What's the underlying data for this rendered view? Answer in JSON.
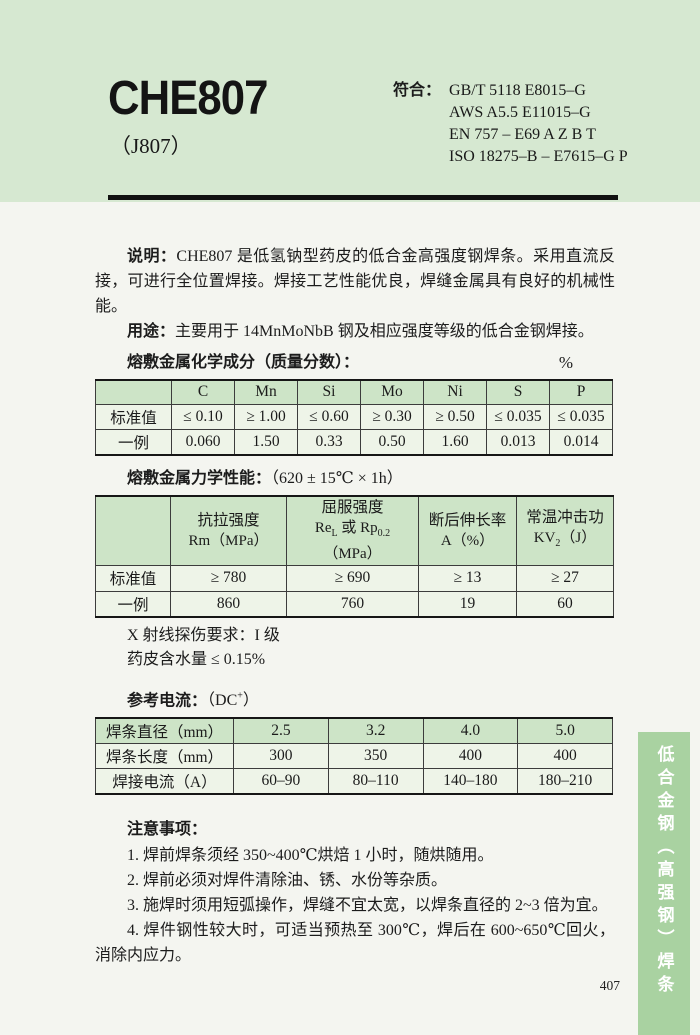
{
  "colors": {
    "band": "#d6e8d1",
    "tab": "#a9d2a1",
    "thead": "#cde4c7",
    "rowbg": "#eef4e8",
    "page": "#f4f5f0"
  },
  "header": {
    "model": "CHE807",
    "alias": "（J807）",
    "standards_label": "符合：",
    "standards": [
      "GB/T 5118 E8015–G",
      "AWS A5.5 E11015–G",
      "EN 757 – E69 A Z B T",
      "ISO 18275–B – E7615–G P"
    ]
  },
  "description": {
    "label": "说明：",
    "text": "CHE807 是低氢钠型药皮的低合金高强度钢焊条。采用直流反接，可进行全位置焊接。焊接工艺性能优良，焊缝金属具有良好的机械性能。"
  },
  "usage": {
    "label": "用途：",
    "text": "主要用于 14MnMoNbB 钢及相应强度等级的低合金钢焊接。"
  },
  "chemical": {
    "title": "熔敷金属化学成分（质量分数）：",
    "unit": "%",
    "columns": [
      "",
      "C",
      "Mn",
      "Si",
      "Mo",
      "Ni",
      "S",
      "P"
    ],
    "rows": [
      [
        "标准值",
        "≤ 0.10",
        "≥ 1.00",
        "≤ 0.60",
        "≥ 0.30",
        "≥ 0.50",
        "≤ 0.035",
        "≤ 0.035"
      ],
      [
        "一例",
        "0.060",
        "1.50",
        "0.33",
        "0.50",
        "1.60",
        "0.013",
        "0.014"
      ]
    ]
  },
  "mechanical": {
    "title_bold": "熔敷金属力学性能：",
    "title_cond": "（620 ± 15℃ × 1h）",
    "columns": [
      {
        "line1": "",
        "line2": []
      },
      {
        "line1": "抗拉强度",
        "line2": [
          "Rm（MPa）"
        ]
      },
      {
        "line1": "屈服强度",
        "line2": [
          "Re",
          {
            "sub": "L"
          },
          " 或 Rp",
          {
            "sub": "0.2"
          },
          "（MPa）"
        ]
      },
      {
        "line1": "断后伸长率",
        "line2": [
          "A（%）"
        ]
      },
      {
        "line1": "常温冲击功",
        "line2": [
          "KV",
          {
            "sub": "2"
          },
          "（J）"
        ]
      }
    ],
    "rows": [
      [
        "标准值",
        "≥ 780",
        "≥ 690",
        "≥ 13",
        "≥ 27"
      ],
      [
        "一例",
        "860",
        "760",
        "19",
        "60"
      ]
    ]
  },
  "extra": {
    "xray": "X 射线探伤要求：I 级",
    "moisture": "药皮含水量 ≤ 0.15%"
  },
  "current": {
    "title_bold": "参考电流：",
    "title_cond": [
      "（DC",
      {
        "sup": "+"
      },
      "）"
    ],
    "rows": [
      {
        "header": true,
        "label": "焊条直径（mm）",
        "values": [
          "2.5",
          "3.2",
          "4.0",
          "5.0"
        ]
      },
      {
        "header": false,
        "label": "焊条长度（mm）",
        "values": [
          "300",
          "350",
          "400",
          "400"
        ]
      },
      {
        "header": false,
        "label": "焊接电流（A）",
        "values": [
          "60–90",
          "80–110",
          "140–180",
          "180–210"
        ]
      }
    ]
  },
  "notes": {
    "title": "注意事项：",
    "items": [
      "1. 焊前焊条须经 350~400℃烘焙 1 小时，随烘随用。",
      "2. 焊前必须对焊件清除油、锈、水份等杂质。",
      "3. 施焊时须用短弧操作，焊缝不宜太宽，以焊条直径的 2~3 倍为宜。",
      "4. 焊件钢性较大时，可适当预热至 300℃，焊后在 600~650℃回火，消除内应力。"
    ]
  },
  "side_tab": {
    "label": "低合金钢（高强钢）焊条"
  },
  "footer": {
    "page_number": "407"
  }
}
